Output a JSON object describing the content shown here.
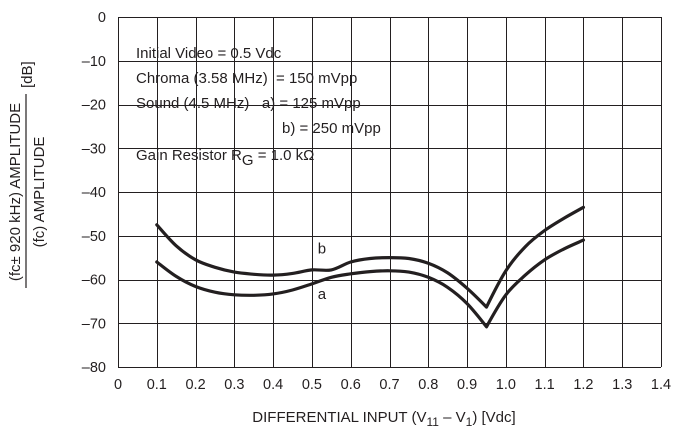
{
  "chart_data": {
    "type": "line",
    "xlabel_parts": [
      "DIFFERENTIAL INPUT (V",
      "11",
      " – V",
      "1",
      ") [Vdc]"
    ],
    "ylabel_line1": "(fc± 920 kHz) AMPLITUDE",
    "ylabel_unit": "[dB]",
    "ylabel_line2": "(fc) AMPLITUDE",
    "xlim": [
      0,
      1.4
    ],
    "ylim": [
      -80,
      0
    ],
    "x_ticks": [
      0,
      0.1,
      0.2,
      0.3,
      0.4,
      0.5,
      0.6,
      0.7,
      0.8,
      0.9,
      1.0,
      1.1,
      1.2,
      1.3,
      1.4
    ],
    "x_tick_labels": [
      "0",
      "0.1",
      "0.2",
      "0.3",
      "0.4",
      "0.5",
      "0.6",
      "0.7",
      "0.8",
      "0.9",
      "1.0",
      "1.1",
      "1.2",
      "1.3",
      "1.4"
    ],
    "y_ticks": [
      0,
      -10,
      -20,
      -30,
      -40,
      -50,
      -60,
      -70,
      -80
    ],
    "y_tick_labels": [
      "0",
      "–10",
      "–20",
      "–30",
      "–40",
      "–50",
      "–60",
      "–70",
      "–80"
    ],
    "grid": true,
    "annotation_lines": [
      {
        "text": "Initial Video = 0.5 Vdc"
      },
      {
        "text": "Chroma (3.58 MHz)  = 150 mVpp"
      },
      {
        "text": "Sound (4.5 MHz)   a) = 125 mVpp"
      },
      {
        "text": "b) = 250 mVpp"
      },
      {
        "text": "Gain Resistor R",
        "sub": "G",
        "tail": " = 1.0 kΩ"
      }
    ],
    "series": [
      {
        "name": "a",
        "x": [
          0.1,
          0.15,
          0.2,
          0.25,
          0.3,
          0.35,
          0.4,
          0.45,
          0.5,
          0.55,
          0.6,
          0.65,
          0.7,
          0.75,
          0.8,
          0.85,
          0.9,
          0.95,
          1.0,
          1.05,
          1.1,
          1.15,
          1.2
        ],
        "y": [
          -56.0,
          -59.3,
          -61.6,
          -62.9,
          -63.5,
          -63.6,
          -63.3,
          -62.4,
          -61.0,
          -59.5,
          -58.7,
          -58.2,
          -58.0,
          -58.3,
          -59.5,
          -61.8,
          -65.5,
          -70.8,
          -63.5,
          -59.0,
          -55.5,
          -53.0,
          -51.0
        ]
      },
      {
        "name": "b",
        "x": [
          0.1,
          0.15,
          0.2,
          0.25,
          0.3,
          0.35,
          0.4,
          0.45,
          0.5,
          0.55,
          0.6,
          0.65,
          0.7,
          0.75,
          0.8,
          0.85,
          0.9,
          0.95,
          1.0,
          1.05,
          1.1,
          1.15,
          1.2
        ],
        "y": [
          -47.5,
          -52.3,
          -55.5,
          -57.2,
          -58.3,
          -58.8,
          -59.0,
          -58.6,
          -57.8,
          -57.8,
          -56.0,
          -55.2,
          -55.0,
          -55.2,
          -56.3,
          -58.5,
          -62.0,
          -66.3,
          -58.0,
          -52.5,
          -48.8,
          -46.0,
          -43.5
        ]
      }
    ]
  }
}
